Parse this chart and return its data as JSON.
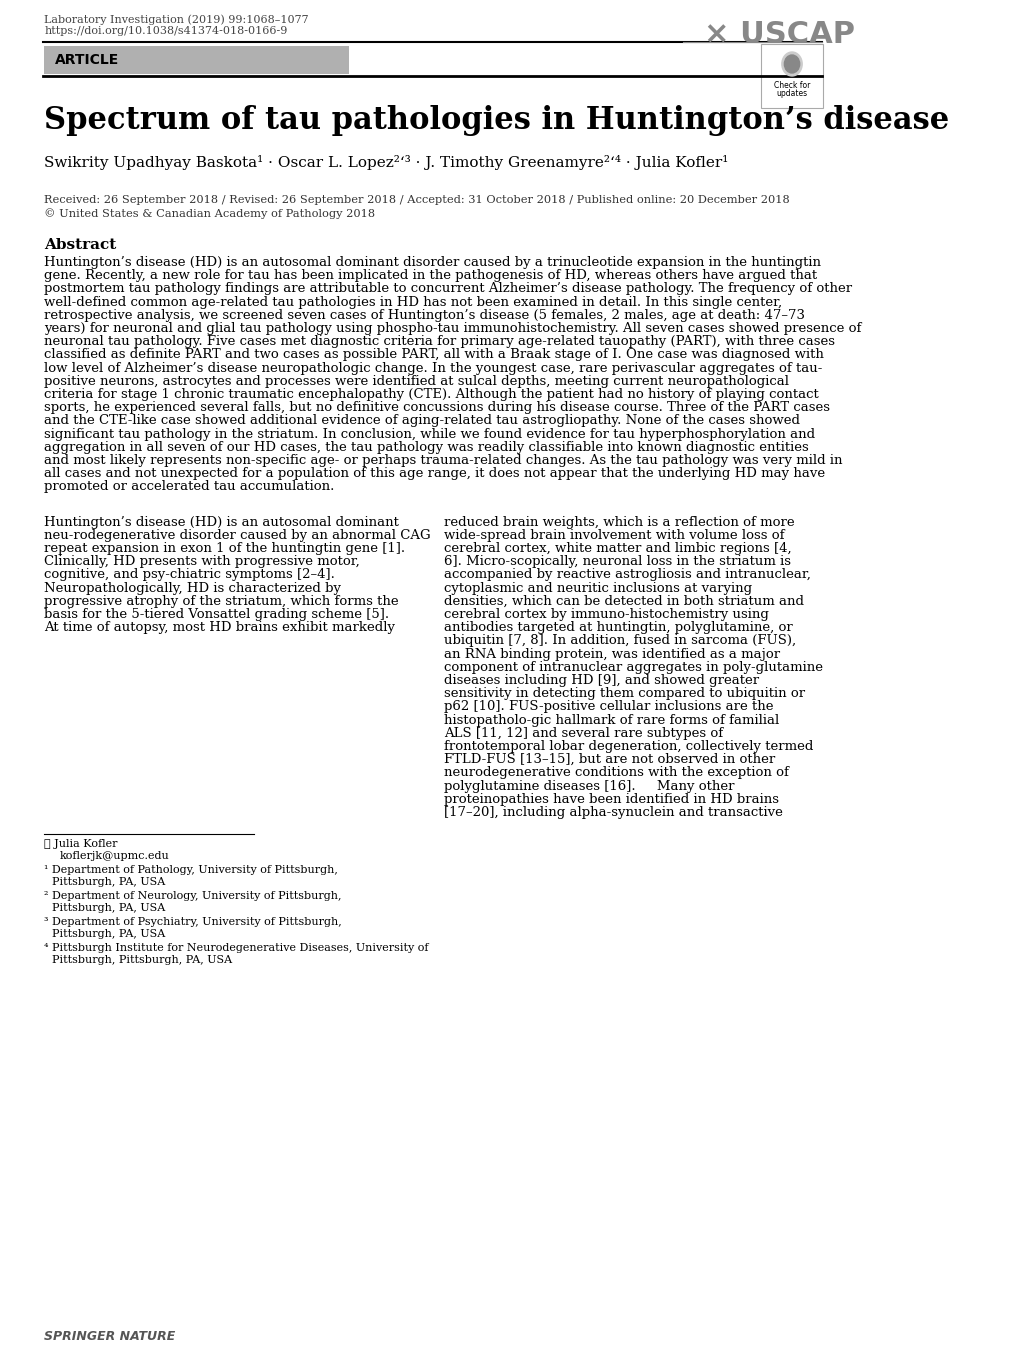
{
  "bg_color": "#ffffff",
  "journal_line1": "Laboratory Investigation (2019) 99:1068–1077",
  "journal_line2": "https://doi.org/10.1038/s41374-018-0166-9",
  "article_label": "ARTICLE",
  "title": "Spectrum of tau pathologies in Huntington’s disease",
  "authors": "Swikrity Upadhyay Baskota¹ · Oscar L. Lopez²ʻ³ · J. Timothy Greenamyre²ʻ⁴ · Julia Kofler¹",
  "received_line": "Received: 26 September 2018 / Revised: 26 September 2018 / Accepted: 31 October 2018 / Published online: 20 December 2018",
  "copyright_line": "© United States & Canadian Academy of Pathology 2018",
  "abstract_title": "Abstract",
  "abstract_text": "Huntington’s disease (HD) is an autosomal dominant disorder caused by a trinucleotide expansion in the huntingtin gene. Recently, a new role for tau has been implicated in the pathogenesis of HD, whereas others have argued that postmortem tau pathology findings are attributable to concurrent Alzheimer’s disease pathology. The frequency of other well-defined common age-related tau pathologies in HD has not been examined in detail. In this single center, retrospective analysis, we screened seven cases of Huntington’s disease (5 females, 2 males, age at death: 47–73 years) for neuronal and glial tau pathology using phospho-tau immunohistochemistry. All seven cases showed presence of neuronal tau pathology. Five cases met diagnostic criteria for primary age-related tauopathy (PART), with three cases classified as definite PART and two cases as possible PART, all with a Braak stage of I. One case was diagnosed with low level of Alzheimer’s disease neuropathologic change. In the youngest case, rare perivascular aggregates of tau-positive neurons, astrocytes and processes were identified at sulcal depths, meeting current neuropathological criteria for stage 1 chronic traumatic encephalopathy (CTE). Although the patient had no history of playing contact sports, he experienced several falls, but no definitive concussions during his disease course. Three of the PART cases and the CTE-like case showed additional evidence of aging-related tau astrogliopathy. None of the cases showed significant tau pathology in the striatum. In conclusion, while we found evidence for tau hyperphosphorylation and aggregation in all seven of our HD cases, the tau pathology was readily classifiable into known diagnostic entities and most likely represents non-specific age- or perhaps trauma-related changes. As the tau pathology was very mild in all cases and not unexpected for a population of this age range, it does not appear that the underlying HD may have promoted or accelerated tau accumulation.",
  "body_col1": "Huntington’s disease (HD) is an autosomal dominant neu-rodegenerative disorder caused by an abnormal CAG repeat expansion in exon 1 of the huntingtin gene [1]. Clinically, HD presents with progressive motor, cognitive, and psy-chiatric symptoms [2–4]. Neuropathologically, HD is characterized by progressive atrophy of the striatum, which forms the basis for the 5-tiered Vonsattel grading scheme [5]. At time of autopsy, most HD brains exhibit markedly",
  "body_col2": "reduced brain weights, which is a reflection of more wide-spread brain involvement with volume loss of cerebral cortex, white matter and limbic regions [4, 6]. Micro-scopically, neuronal loss in the striatum is accompanied by reactive astrogliosis and intranuclear, cytoplasmic and neuritic inclusions at varying densities, which can be detected in both striatum and cerebral cortex by immuno-histochemistry using antibodies targeted at huntingtin, polyglutamine, or ubiquitin [7, 8]. In addition, fused in sarcoma (FUS), an RNA binding protein, was identified as a major component of intranuclear aggregates in poly-glutamine diseases including HD [9], and showed greater sensitivity in detecting them compared to ubiquitin or p62 [10]. FUS-positive cellular inclusions are the histopatholo-gic hallmark of rare forms of familial ALS [11, 12] and several rare subtypes of frontotemporal lobar degeneration, collectively termed FTLD-FUS [13–15], but are not observed in other neurodegenerative conditions with the exception of polyglutamine diseases [16].\n    Many other proteinopathies have been identified in HD brains [17–20], including alpha-synuclein and transactive",
  "footnote_email": "✉ Julia Kofler\nkoflerjk@upmc.edu",
  "footnote_1": "¹ Department of Pathology, University of Pittsburgh,\n  Pittsburgh, PA, USA",
  "footnote_2": "² Department of Neurology, University of Pittsburgh,\n  Pittsburgh, PA, USA",
  "footnote_3": "³ Department of Psychiatry, University of Pittsburgh,\n  Pittsburgh, PA, USA",
  "footnote_4": "⁴ Pittsburgh Institute for Neurodegenerative Diseases, University of\n  Pittsburgh, Pittsburgh, PA, USA",
  "springer_nature": "SPRINGER NATURE",
  "article_bg_color": "#b0b0b0",
  "article_text_color": "#000000",
  "header_text_color": "#555555",
  "link_color": "#0000cc"
}
